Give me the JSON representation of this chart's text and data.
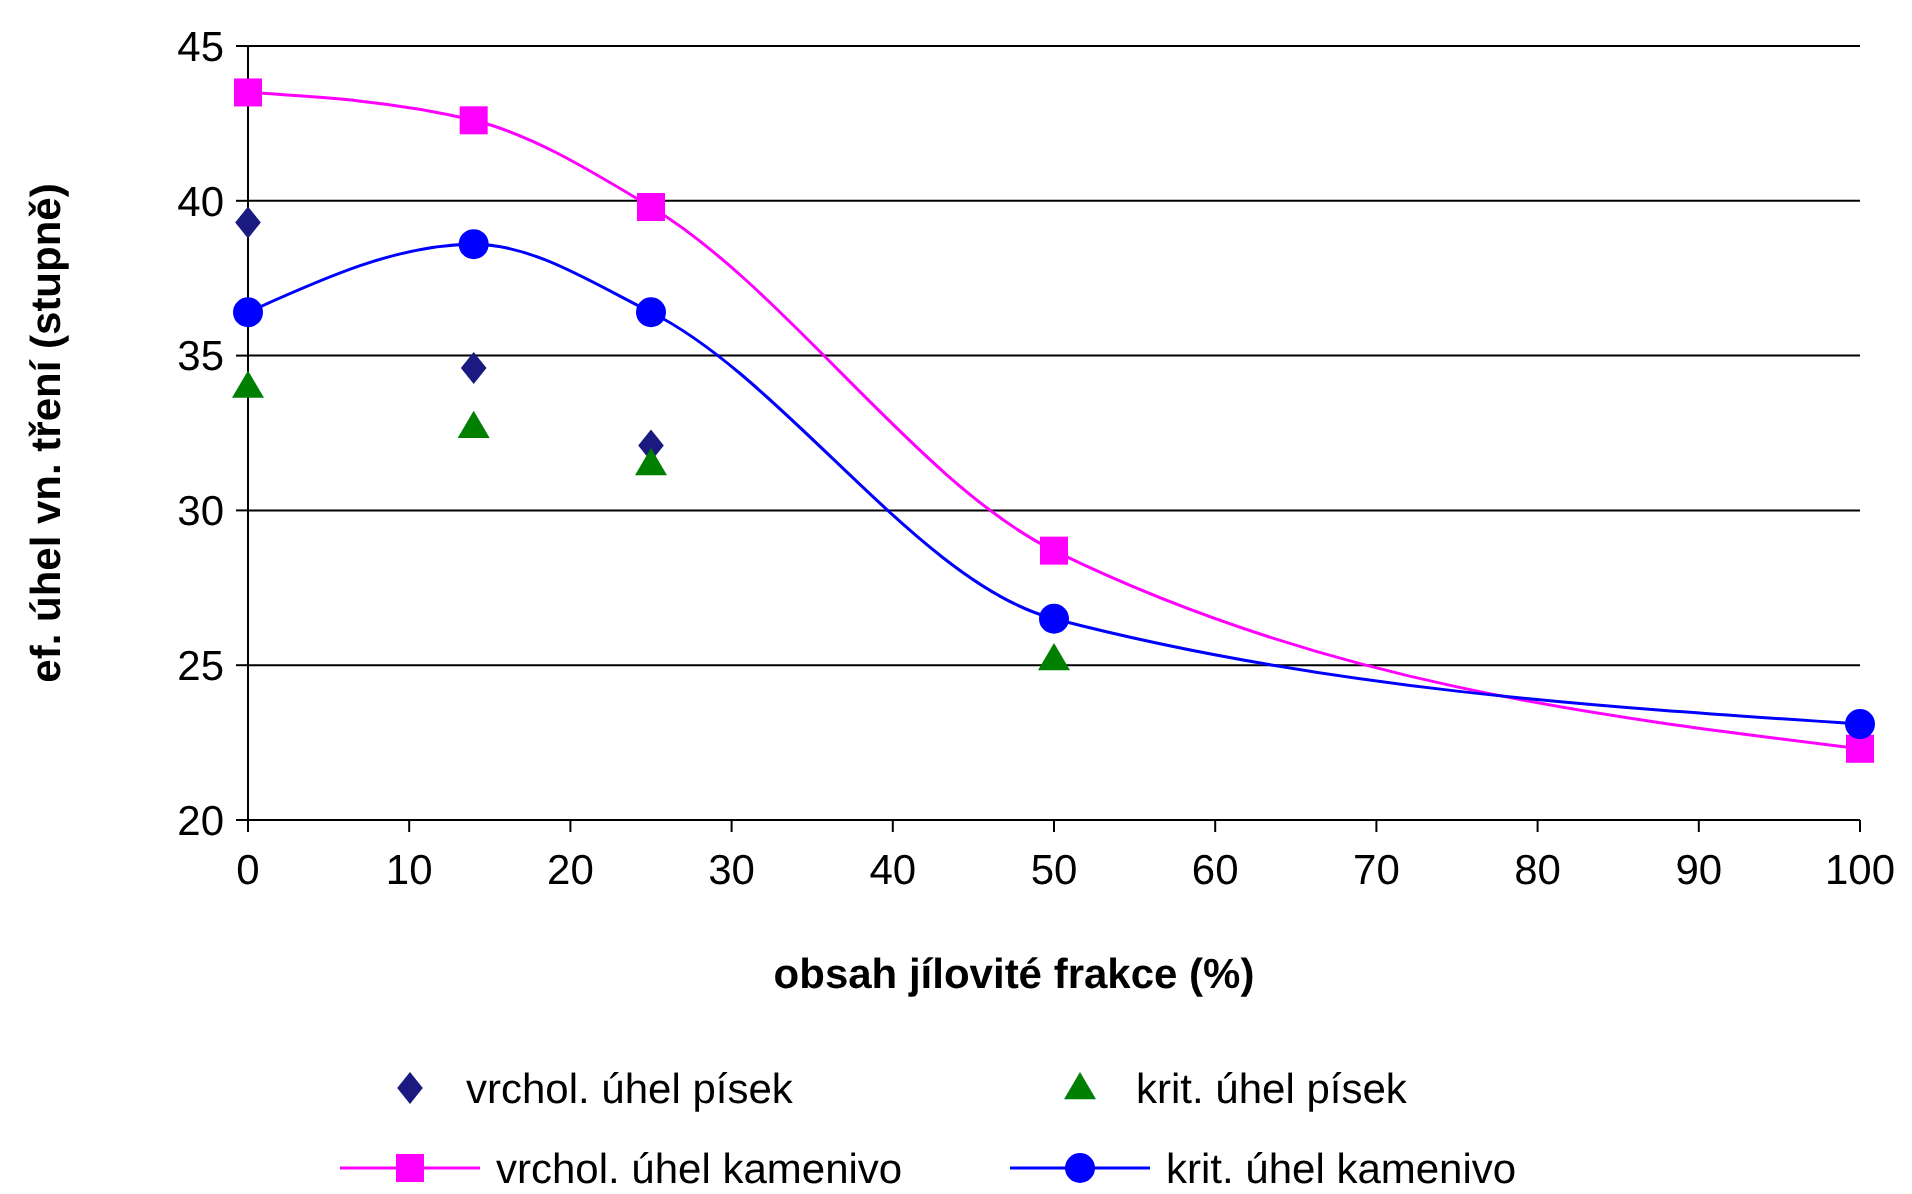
{
  "chart_data": {
    "type": "line",
    "xlabel": "obsah jílovité frakce (%)",
    "ylabel": "ef. úhel vn. tření (stupně)",
    "xlim": [
      0,
      100
    ],
    "xticks": [
      0,
      10,
      20,
      30,
      40,
      50,
      60,
      70,
      80,
      90,
      100
    ],
    "ylim": [
      20,
      45
    ],
    "yticks": [
      20,
      25,
      30,
      35,
      40,
      45
    ],
    "grid": "y",
    "legend": "bottom",
    "series": [
      {
        "name": "vrchol. úhel písek",
        "type": "scatter",
        "marker": "diamond",
        "color": "#1a1a80",
        "x": [
          0,
          14,
          25
        ],
        "values": [
          39.3,
          34.6,
          32.1
        ]
      },
      {
        "name": "krit. úhel písek",
        "type": "scatter",
        "marker": "triangle",
        "color": "#008000",
        "x": [
          0,
          14,
          25,
          50
        ],
        "values": [
          34,
          32.7,
          31.5,
          25.2
        ]
      },
      {
        "name": "vrchol. úhel kamenivo",
        "marker": "square",
        "color": "#ff00ff",
        "x": [
          0,
          14,
          25,
          50,
          100
        ],
        "values": [
          43.5,
          42.6,
          39.8,
          28.7,
          22.3
        ]
      },
      {
        "name": "krit. úhel kamenivo",
        "marker": "circle",
        "color": "#0000ff",
        "x": [
          0,
          14,
          25,
          50,
          100
        ],
        "values": [
          36.4,
          38.6,
          36.4,
          26.5,
          23.1
        ]
      }
    ]
  }
}
